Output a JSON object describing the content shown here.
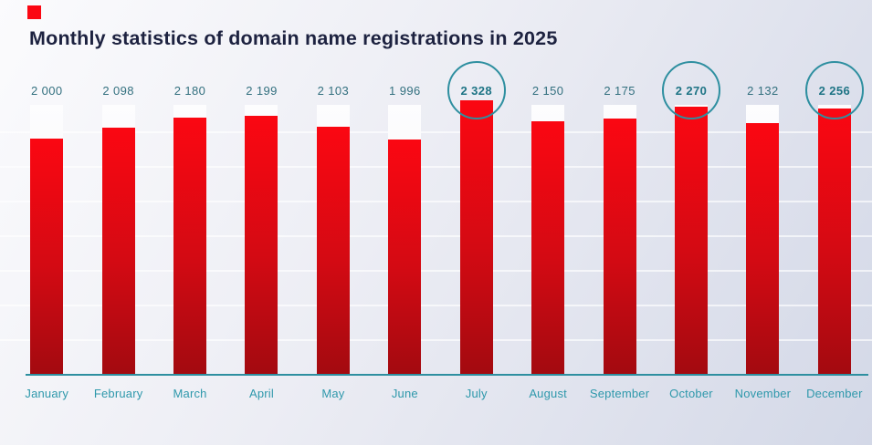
{
  "title": "Monthly statistics of domain name registrations in 2025",
  "chart_data": {
    "type": "bar",
    "title": "Monthly statistics of domain name registrations in 2025",
    "categories": [
      "January",
      "February",
      "March",
      "April",
      "May",
      "June",
      "July",
      "August",
      "September",
      "October",
      "November",
      "December"
    ],
    "values": [
      2000,
      2098,
      2180,
      2199,
      2103,
      1996,
      2328,
      2150,
      2175,
      2270,
      2132,
      2256
    ],
    "value_labels": [
      "2 000",
      "2 098",
      "2 180",
      "2 199",
      "2 103",
      "1 996",
      "2 328",
      "2 150",
      "2 175",
      "2 270",
      "2 132",
      "2 256"
    ],
    "highlighted_categories": [
      "July",
      "October",
      "December"
    ],
    "xlabel": "",
    "ylabel": "",
    "ylim": [
      0,
      2328
    ],
    "legend": false,
    "grid": true,
    "colors": {
      "bar_top": "#fb0712",
      "bar_bottom": "#a30a10",
      "accent_teal": "#2e8fa0",
      "axis_label_teal": "#2e98ab",
      "title_color": "#1d2240"
    }
  }
}
